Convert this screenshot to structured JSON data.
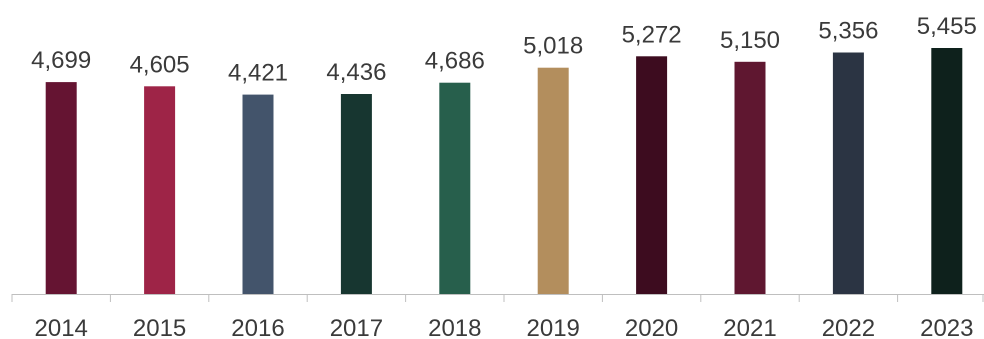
{
  "chart_data": {
    "type": "bar",
    "title": "",
    "xlabel": "",
    "ylabel": "",
    "categories": [
      "2014",
      "2015",
      "2016",
      "2017",
      "2018",
      "2019",
      "2020",
      "2021",
      "2022",
      "2023"
    ],
    "values": [
      4699,
      4605,
      4421,
      4436,
      4686,
      5018,
      5272,
      5150,
      5356,
      5455
    ],
    "data_labels": [
      "4,699",
      "4,605",
      "4,421",
      "4,436",
      "4,686",
      "5,018",
      "5,272",
      "5,150",
      "5,356",
      "5,455"
    ],
    "ylim": [
      0,
      5455
    ],
    "grid": false,
    "legend": "none",
    "bar_colors": [
      "#651432",
      "#9e2447",
      "#43546b",
      "#173630",
      "#275f4c",
      "#b38e5d",
      "#3d0c1f",
      "#5f1730",
      "#2b3443",
      "#0e211c"
    ],
    "axis_color": "#bfbfbf"
  }
}
